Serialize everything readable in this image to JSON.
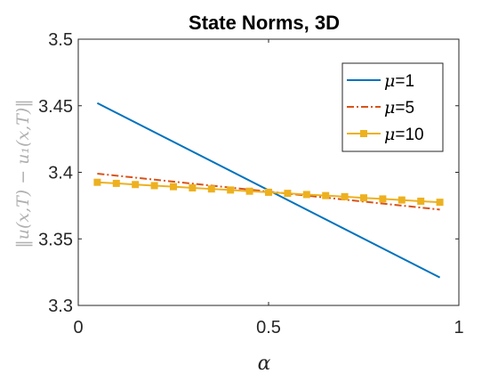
{
  "chart_data": {
    "type": "line",
    "title": "State Norms, 3D",
    "xlabel": "α",
    "ylabel": "‖u(x,T) − u₁(x,T)‖",
    "xlim": [
      0,
      1
    ],
    "ylim": [
      3.3,
      3.5
    ],
    "xticks": [
      "0",
      "0.5",
      "1"
    ],
    "yticks": [
      "3.3",
      "3.35",
      "3.4",
      "3.45",
      "3.5"
    ],
    "grid": false,
    "legend_position": "top-right",
    "series": [
      {
        "name": "μ=1",
        "mu": "μ",
        "suffix": "=1",
        "color": "#0072BD",
        "style": "solid",
        "marker": "none",
        "x": [
          0.05,
          0.95
        ],
        "y": [
          3.452,
          3.321
        ]
      },
      {
        "name": "μ=5",
        "mu": "μ",
        "suffix": "=5",
        "color": "#D95319",
        "style": "dashdot",
        "marker": "none",
        "x": [
          0.05,
          0.95
        ],
        "y": [
          3.399,
          3.372
        ]
      },
      {
        "name": "μ=10",
        "mu": "μ",
        "suffix": "=10",
        "color": "#EDB120",
        "style": "solid",
        "marker": "square",
        "x": [
          0.05,
          0.1,
          0.15,
          0.2,
          0.25,
          0.3,
          0.35,
          0.4,
          0.45,
          0.5,
          0.55,
          0.6,
          0.65,
          0.7,
          0.75,
          0.8,
          0.85,
          0.9,
          0.95
        ],
        "y": [
          3.3925,
          3.3917,
          3.3908,
          3.39,
          3.3892,
          3.3883,
          3.3875,
          3.3867,
          3.3858,
          3.385,
          3.3842,
          3.3833,
          3.3825,
          3.3817,
          3.3808,
          3.38,
          3.3792,
          3.3783,
          3.3775
        ]
      }
    ]
  }
}
